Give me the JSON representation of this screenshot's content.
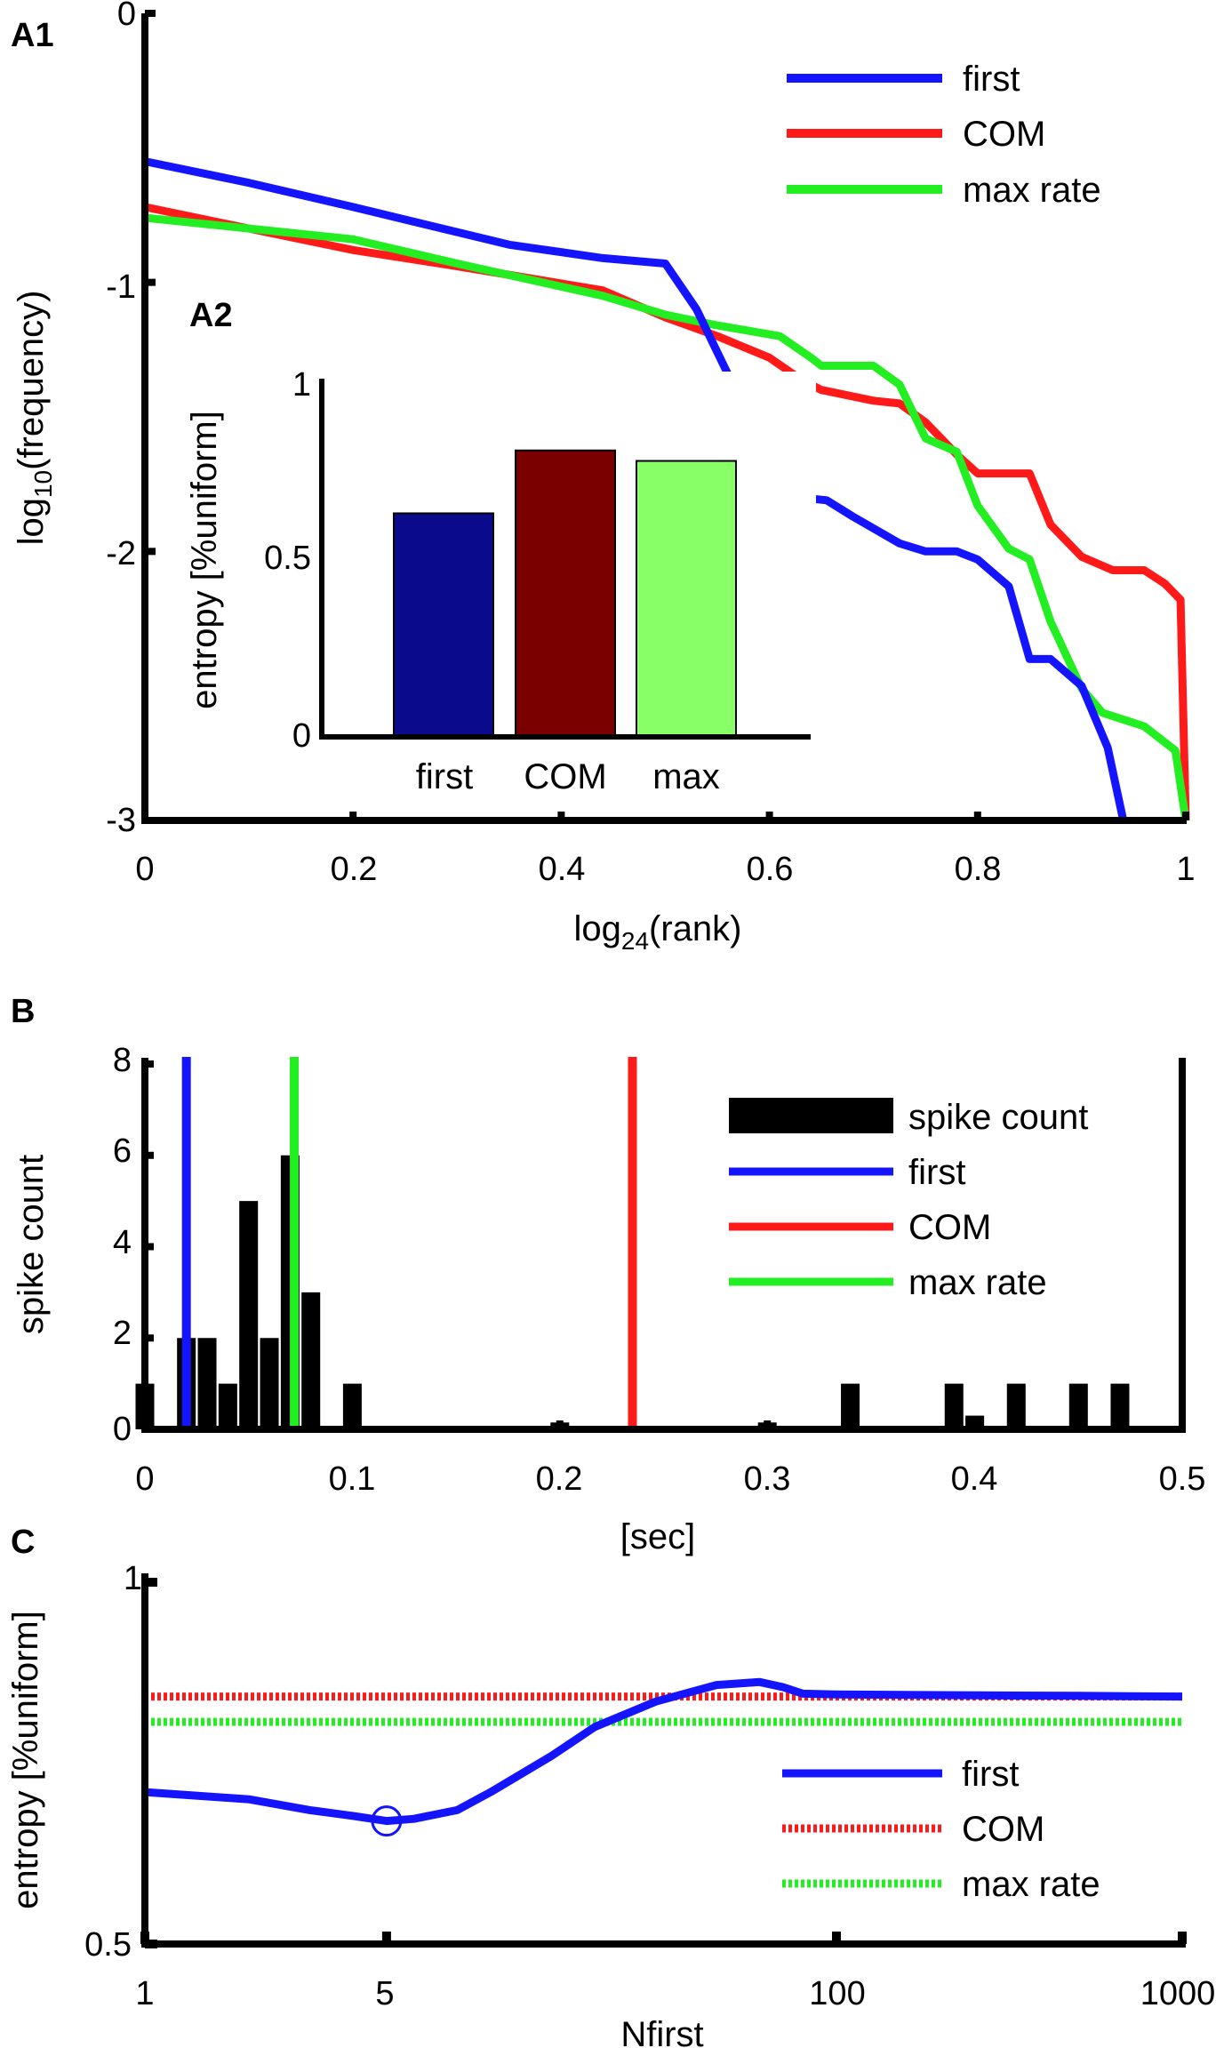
{
  "panels": {
    "a1": "A1",
    "a2": "A2",
    "b": "B",
    "c": "C"
  },
  "colors": {
    "first": "#1414ff",
    "com": "#ff1a1a",
    "max_rate": "#22ee22",
    "bar_first": "#0a0a8c",
    "bar_com": "#7a0000",
    "bar_max": "#88ff66",
    "black": "#000000"
  },
  "chart_data": [
    {
      "id": "A1",
      "type": "line",
      "xlabel_main": "log",
      "xlabel_sub": "24",
      "xlabel_rest": "(rank)",
      "ylabel_main": "log",
      "ylabel_sub": "10",
      "ylabel_rest": "(frequency)",
      "xlim": [
        0,
        1
      ],
      "ylim": [
        -3,
        0
      ],
      "xticks": [
        0,
        0.2,
        0.4,
        0.6,
        0.8,
        1
      ],
      "xtick_labels": [
        "0",
        "0.2",
        "0.4",
        "0.6",
        "0.8",
        "1"
      ],
      "yticks": [
        0,
        -1,
        -2,
        -3
      ],
      "ytick_labels": [
        "0",
        "-1",
        "-2",
        "-3"
      ],
      "legend": [
        "first",
        "COM",
        "max rate"
      ],
      "series": [
        {
          "name": "first",
          "x": [
            0,
            0.1,
            0.2,
            0.35,
            0.44,
            0.5,
            0.53,
            0.565,
            0.6,
            0.63,
            0.655,
            0.68,
            0.725,
            0.75,
            0.78,
            0.8,
            0.83,
            0.85,
            0.87,
            0.9,
            0.925,
            0.94
          ],
          "y": [
            -0.55,
            -0.63,
            -0.72,
            -0.86,
            -0.91,
            -0.93,
            -1.1,
            -1.38,
            -1.57,
            -1.8,
            -1.81,
            -1.87,
            -1.97,
            -2.0,
            -2.0,
            -2.03,
            -2.13,
            -2.4,
            -2.4,
            -2.5,
            -2.73,
            -3.0
          ]
        },
        {
          "name": "COM",
          "x": [
            0,
            0.1,
            0.2,
            0.3,
            0.44,
            0.5,
            0.55,
            0.6,
            0.63,
            0.65,
            0.7,
            0.725,
            0.75,
            0.78,
            0.8,
            0.85,
            0.87,
            0.9,
            0.93,
            0.96,
            0.98,
            0.995,
            1.0
          ],
          "y": [
            -0.72,
            -0.8,
            -0.88,
            -0.94,
            -1.03,
            -1.13,
            -1.2,
            -1.28,
            -1.36,
            -1.4,
            -1.44,
            -1.45,
            -1.52,
            -1.64,
            -1.71,
            -1.71,
            -1.9,
            -2.02,
            -2.07,
            -2.07,
            -2.12,
            -2.18,
            -3.0
          ]
        },
        {
          "name": "max rate",
          "x": [
            0,
            0.1,
            0.2,
            0.3,
            0.44,
            0.5,
            0.55,
            0.61,
            0.64,
            0.65,
            0.7,
            0.725,
            0.75,
            0.78,
            0.8,
            0.83,
            0.85,
            0.87,
            0.9,
            0.92,
            0.96,
            0.99,
            1.0
          ],
          "y": [
            -0.76,
            -0.8,
            -0.84,
            -0.93,
            -1.05,
            -1.12,
            -1.16,
            -1.2,
            -1.28,
            -1.31,
            -1.31,
            -1.38,
            -1.58,
            -1.63,
            -1.83,
            -1.99,
            -2.03,
            -2.26,
            -2.51,
            -2.6,
            -2.65,
            -2.74,
            -3.0
          ]
        }
      ]
    },
    {
      "id": "A2",
      "type": "bar",
      "categories": [
        "first",
        "COM",
        "max"
      ],
      "values": [
        0.64,
        0.82,
        0.79
      ],
      "ylabel": "entropy [%uniform]",
      "ylim": [
        0,
        1
      ],
      "yticks": [
        0,
        0.5,
        1
      ],
      "ytick_labels": [
        "0",
        "0.5",
        "1"
      ]
    },
    {
      "id": "B",
      "type": "bar",
      "xlabel": "[sec]",
      "ylabel": "spike count",
      "xlim": [
        0,
        0.5
      ],
      "ylim": [
        0,
        8
      ],
      "xticks": [
        0,
        0.1,
        0.2,
        0.3,
        0.4,
        0.5
      ],
      "xtick_labels": [
        "0",
        "0.1",
        "0.2",
        "0.3",
        "0.4",
        "0.5"
      ],
      "yticks": [
        0,
        2,
        4,
        6,
        8
      ],
      "ytick_labels": [
        "0",
        "2",
        "4",
        "6",
        "8"
      ],
      "bin_width": 0.01,
      "bins_x": [
        0.0,
        0.02,
        0.03,
        0.04,
        0.05,
        0.06,
        0.07,
        0.08,
        0.1,
        0.2,
        0.3,
        0.34,
        0.39,
        0.4,
        0.42,
        0.45,
        0.47
      ],
      "bins_count": [
        1,
        2,
        2,
        1,
        5,
        2,
        6,
        3,
        1,
        0.15,
        0.15,
        1,
        1,
        0.3,
        1,
        1,
        1
      ],
      "markers": [
        {
          "name": "first",
          "x": 0.02
        },
        {
          "name": "COM",
          "x": 0.235
        },
        {
          "name": "max rate",
          "x": 0.072
        }
      ],
      "legend": [
        "spike count",
        "first",
        "COM",
        "max rate"
      ]
    },
    {
      "id": "C",
      "type": "line",
      "xscale": "log",
      "xlabel": "Nfirst",
      "ylabel": "entropy [%uniform]",
      "xlim": [
        1,
        1000
      ],
      "ylim": [
        0.5,
        1
      ],
      "xticks": [
        1,
        5,
        100,
        1000
      ],
      "xtick_labels": [
        "1",
        "5",
        "100",
        "1000"
      ],
      "yticks": [
        0.5,
        1
      ],
      "ytick_labels": [
        "0.5",
        "1"
      ],
      "series": [
        {
          "name": "first",
          "x": [
            1,
            2,
            3,
            4,
            5,
            6,
            8,
            10,
            15,
            20,
            30,
            45,
            60,
            70,
            80,
            100,
            200,
            500,
            1000
          ],
          "y": [
            0.71,
            0.7,
            0.685,
            0.677,
            0.67,
            0.673,
            0.685,
            0.71,
            0.76,
            0.8,
            0.835,
            0.858,
            0.862,
            0.855,
            0.846,
            0.845,
            0.844,
            0.843,
            0.842
          ]
        },
        {
          "name": "COM",
          "x": [
            1,
            1000
          ],
          "y": [
            0.842,
            0.842
          ],
          "style": "dotted"
        },
        {
          "name": "max rate",
          "x": [
            1,
            1000
          ],
          "y": [
            0.807,
            0.807
          ],
          "style": "dotted"
        }
      ],
      "marker": {
        "x": 5,
        "y": 0.67,
        "shape": "circle"
      },
      "legend": [
        "first",
        "COM",
        "max rate"
      ]
    }
  ]
}
